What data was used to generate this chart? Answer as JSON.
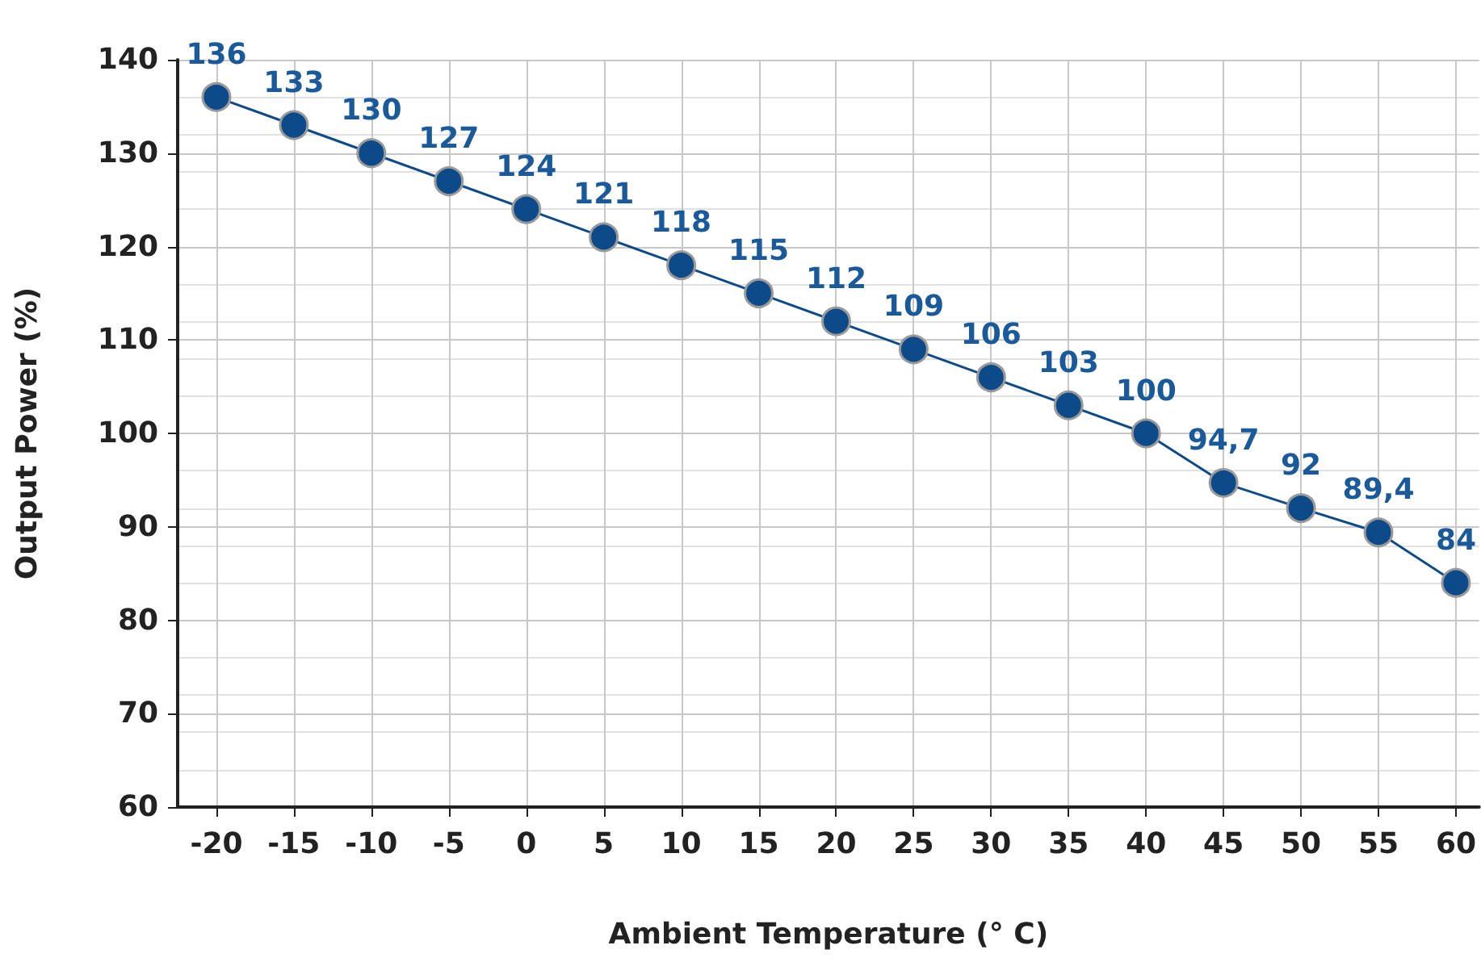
{
  "chart_data": {
    "type": "line",
    "xlabel": "Ambient Temperature (° C)",
    "ylabel": "Output Power (%)",
    "x": [
      -20,
      -15,
      -10,
      -5,
      0,
      5,
      10,
      15,
      20,
      25,
      30,
      35,
      40,
      45,
      50,
      55,
      60
    ],
    "series": [
      {
        "color": "#0d4a8a",
        "values": [
          136,
          133,
          130,
          127,
          124,
          121,
          118,
          115,
          112,
          109,
          106,
          103,
          100,
          94.7,
          92,
          89.4,
          84
        ],
        "value_labels": [
          "136",
          "133",
          "130",
          "127",
          "124",
          "121",
          "118",
          "115",
          "112",
          "109",
          "106",
          "103",
          "100",
          "94,7",
          "92",
          "89,4",
          "84"
        ]
      }
    ],
    "xlim": [
      -22.5,
      61.5
    ],
    "xticks": [
      -20,
      -15,
      -10,
      -5,
      0,
      5,
      10,
      15,
      20,
      25,
      30,
      35,
      40,
      45,
      50,
      55,
      60
    ],
    "ylim": [
      60,
      140
    ],
    "yticks": [
      60,
      70,
      80,
      90,
      100,
      110,
      120,
      130,
      140
    ],
    "grid": true,
    "marker": "circle",
    "line_style": "solid"
  }
}
